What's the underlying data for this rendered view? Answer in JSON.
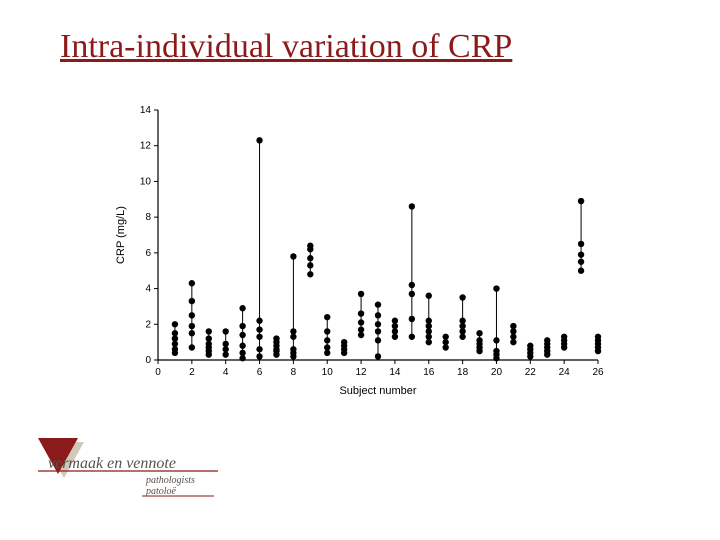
{
  "title": "Intra-individual variation of CRP",
  "chart": {
    "type": "scatter-with-range",
    "xlabel": "Subject number",
    "ylabel": "CRP (mg/L)",
    "xlim": [
      0,
      26
    ],
    "ylim": [
      0,
      14
    ],
    "xtick_step": 2,
    "ytick_step": 2,
    "background_color": "#ffffff",
    "axis_color": "#000000",
    "tick_fontsize": 10,
    "label_fontsize": 11,
    "marker_color": "#000000",
    "marker_radius": 3.2,
    "line_color": "#000000",
    "line_width": 1,
    "series": [
      {
        "subject": 1,
        "values": [
          0.4,
          0.6,
          0.9,
          1.2,
          1.5,
          2.0
        ]
      },
      {
        "subject": 2,
        "values": [
          0.7,
          1.5,
          1.9,
          2.5,
          3.3,
          4.3
        ]
      },
      {
        "subject": 3,
        "values": [
          0.3,
          0.5,
          0.7,
          0.9,
          1.2,
          1.6
        ]
      },
      {
        "subject": 4,
        "values": [
          0.3,
          0.6,
          0.9,
          1.6
        ]
      },
      {
        "subject": 5,
        "values": [
          0.1,
          0.4,
          0.8,
          1.4,
          1.9,
          2.9
        ]
      },
      {
        "subject": 6,
        "values": [
          0.2,
          0.6,
          1.3,
          1.7,
          2.2,
          12.3
        ]
      },
      {
        "subject": 7,
        "values": [
          0.3,
          0.5,
          0.6,
          0.8,
          1.0,
          1.2
        ]
      },
      {
        "subject": 8,
        "values": [
          0.2,
          0.4,
          0.6,
          1.3,
          1.6,
          5.8
        ]
      },
      {
        "subject": 9,
        "values": [
          4.8,
          5.3,
          5.7,
          6.2,
          6.4
        ]
      },
      {
        "subject": 10,
        "values": [
          0.4,
          0.7,
          1.1,
          1.6,
          2.4
        ]
      },
      {
        "subject": 11,
        "values": [
          0.4,
          0.6,
          0.8,
          1.0
        ]
      },
      {
        "subject": 12,
        "values": [
          1.4,
          1.7,
          2.1,
          2.6,
          3.7
        ]
      },
      {
        "subject": 13,
        "values": [
          0.2,
          1.1,
          1.6,
          2.0,
          2.5,
          3.1
        ]
      },
      {
        "subject": 14,
        "values": [
          1.3,
          1.6,
          1.9,
          2.2
        ]
      },
      {
        "subject": 15,
        "values": [
          1.3,
          2.3,
          3.7,
          4.2,
          8.6
        ]
      },
      {
        "subject": 16,
        "values": [
          1.0,
          1.3,
          1.6,
          1.9,
          2.2,
          3.6
        ]
      },
      {
        "subject": 17,
        "values": [
          0.7,
          1.0,
          1.3
        ]
      },
      {
        "subject": 18,
        "values": [
          1.3,
          1.6,
          1.9,
          2.2,
          3.5
        ]
      },
      {
        "subject": 19,
        "values": [
          0.5,
          0.7,
          0.9,
          1.1,
          1.5
        ]
      },
      {
        "subject": 20,
        "values": [
          0.1,
          0.3,
          0.5,
          1.1,
          4.0
        ]
      },
      {
        "subject": 21,
        "values": [
          1.0,
          1.3,
          1.6,
          1.9
        ]
      },
      {
        "subject": 22,
        "values": [
          0.2,
          0.4,
          0.6,
          0.8
        ]
      },
      {
        "subject": 23,
        "values": [
          0.3,
          0.5,
          0.7,
          0.9,
          1.1
        ]
      },
      {
        "subject": 24,
        "values": [
          0.7,
          0.9,
          1.1,
          1.3
        ]
      },
      {
        "subject": 25,
        "values": [
          5.0,
          5.5,
          5.9,
          6.5,
          8.9
        ]
      },
      {
        "subject": 26,
        "values": [
          0.5,
          0.7,
          0.9,
          1.1,
          1.3
        ]
      }
    ]
  },
  "logo": {
    "brand_main": "vermaak en vennote",
    "sub1": "pathologists",
    "sub2": "patoloë",
    "triangle_fill": "#8b1a1a",
    "triangle_shadow": "#d0c8b8",
    "text_color": "#5a5048",
    "line_color": "#8b1a1a"
  }
}
